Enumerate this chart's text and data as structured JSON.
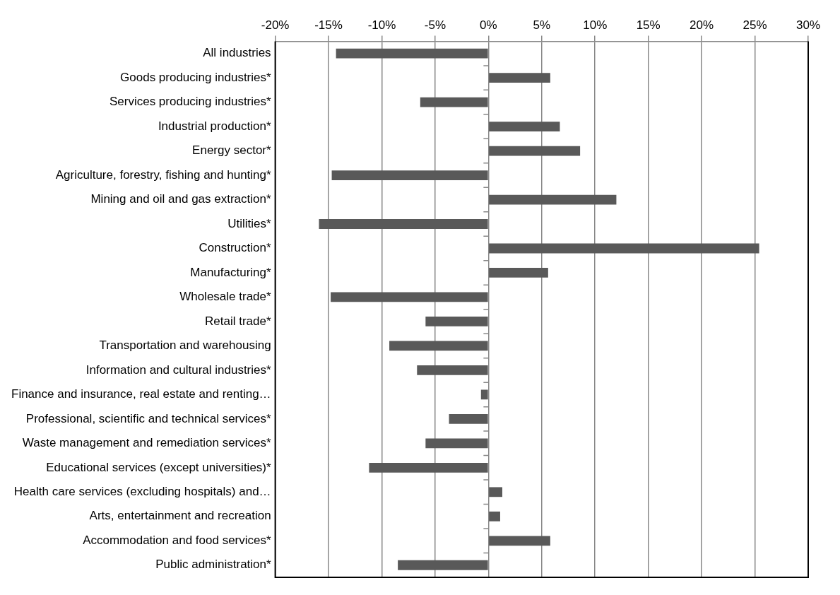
{
  "chart_data": {
    "type": "bar",
    "orientation": "horizontal",
    "categories": [
      "All industries",
      "Goods producing industries*",
      "Services producing industries*",
      "Industrial production*",
      "Energy sector*",
      "Agriculture, forestry, fishing and hunting*",
      "Mining and oil and gas extraction*",
      "Utilities*",
      "Construction*",
      "Manufacturing*",
      "Wholesale trade*",
      "Retail trade*",
      "Transportation and warehousing",
      "Information and cultural industries*",
      "Finance and insurance, real estate and renting…",
      "Professional, scientific and technical services*",
      "Waste management and remediation services*",
      "Educational services (except universities)*",
      "Health care services (excluding hospitals) and…",
      "Arts, entertainment and recreation",
      "Accommodation and food services*",
      "Public administration*"
    ],
    "values": [
      -14.3,
      5.8,
      -6.4,
      6.7,
      8.6,
      -14.7,
      12.0,
      -15.9,
      25.4,
      5.6,
      -14.8,
      -5.9,
      -9.3,
      -6.7,
      -0.7,
      -3.7,
      -5.9,
      -11.2,
      1.3,
      1.1,
      5.8,
      -8.5
    ],
    "color": "#595959",
    "xlim": [
      -20,
      30
    ],
    "xticks": [
      {
        "value": -20,
        "label": "-20%"
      },
      {
        "value": -15,
        "label": "-15%"
      },
      {
        "value": -10,
        "label": "-10%"
      },
      {
        "value": -5,
        "label": "-5%"
      },
      {
        "value": 0,
        "label": "0%"
      },
      {
        "value": 5,
        "label": "5%"
      },
      {
        "value": 10,
        "label": "10%"
      },
      {
        "value": 15,
        "label": "15%"
      },
      {
        "value": 20,
        "label": "20%"
      },
      {
        "value": 25,
        "label": "25%"
      },
      {
        "value": 30,
        "label": "30%"
      }
    ],
    "grid": "x",
    "legend": false
  }
}
